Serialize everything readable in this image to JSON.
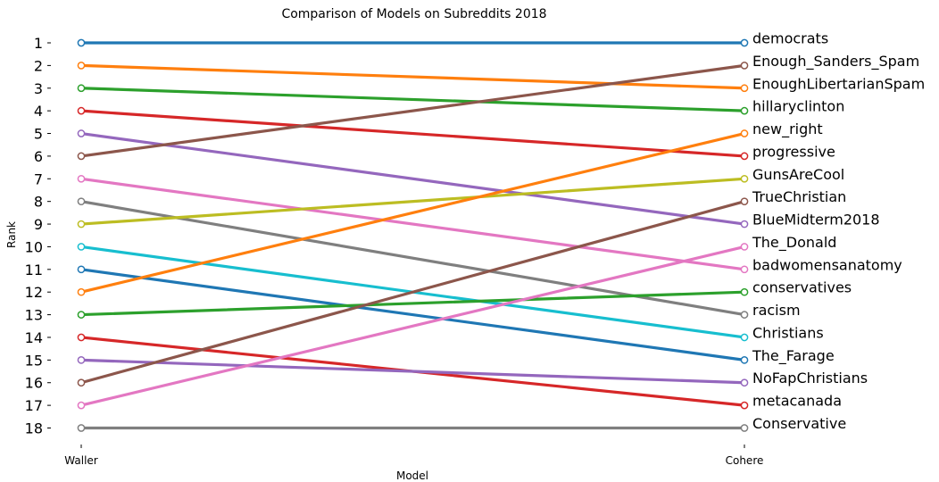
{
  "chart_data": {
    "type": "line",
    "title": "Comparison of Models on Subreddits 2018",
    "xlabel": "Model",
    "ylabel": "Rank",
    "categories": [
      "Waller",
      "Cohere"
    ],
    "ylim": [
      1,
      18
    ],
    "y_inverted": true,
    "grid": false,
    "yticks": [
      1,
      2,
      3,
      4,
      5,
      6,
      7,
      8,
      9,
      10,
      11,
      12,
      13,
      14,
      15,
      16,
      17,
      18
    ],
    "right_labels": [
      "democrats",
      "Enough_Sanders_Spam",
      "EnoughLibertarianSpam",
      "hillaryclinton",
      "new_right",
      "progressive",
      "GunsAreCool",
      "TrueChristian",
      "BlueMidterm2018",
      "The_Donald",
      "badwomensanatomy",
      "conservatives",
      "racism",
      "Christians",
      "The_Farage",
      "NoFapChristians",
      "metacanada",
      "Conservative"
    ],
    "series": [
      {
        "values": [
          1,
          1
        ],
        "color": "#1f77b4"
      },
      {
        "values": [
          2,
          3
        ],
        "color": "#ff7f0e"
      },
      {
        "values": [
          3,
          4
        ],
        "color": "#2ca02c"
      },
      {
        "values": [
          4,
          6
        ],
        "color": "#d62728"
      },
      {
        "values": [
          5,
          9
        ],
        "color": "#9467bd"
      },
      {
        "values": [
          6,
          2
        ],
        "color": "#8c564b"
      },
      {
        "values": [
          7,
          11
        ],
        "color": "#e377c2"
      },
      {
        "values": [
          8,
          13
        ],
        "color": "#7f7f7f"
      },
      {
        "values": [
          9,
          7
        ],
        "color": "#bcbd22"
      },
      {
        "values": [
          10,
          14
        ],
        "color": "#17becf"
      },
      {
        "values": [
          11,
          15
        ],
        "color": "#1f77b4"
      },
      {
        "values": [
          12,
          5
        ],
        "color": "#ff7f0e"
      },
      {
        "values": [
          13,
          12
        ],
        "color": "#2ca02c"
      },
      {
        "values": [
          14,
          17
        ],
        "color": "#d62728"
      },
      {
        "values": [
          15,
          16
        ],
        "color": "#9467bd"
      },
      {
        "values": [
          16,
          8
        ],
        "color": "#8c564b"
      },
      {
        "values": [
          17,
          10
        ],
        "color": "#e377c2"
      },
      {
        "values": [
          18,
          18
        ],
        "color": "#7f7f7f"
      }
    ]
  }
}
